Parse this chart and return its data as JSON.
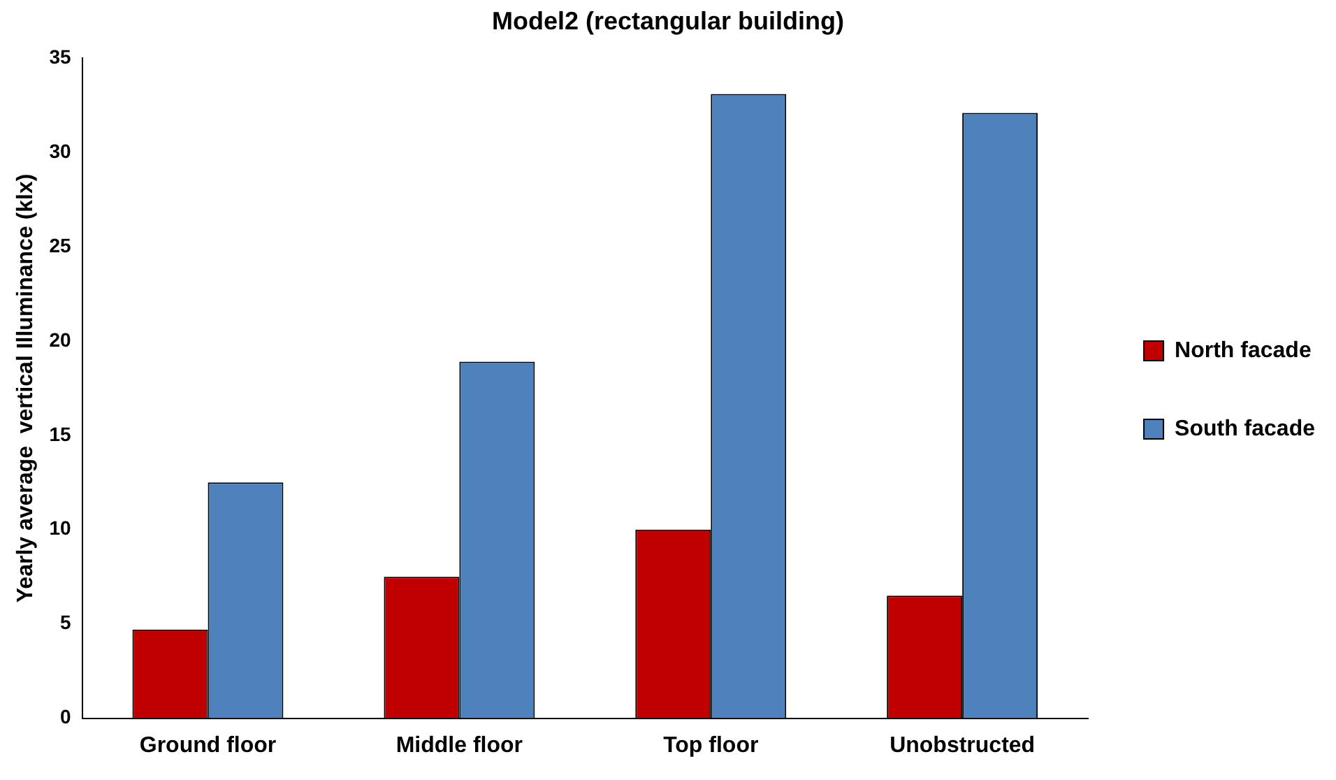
{
  "chart_data": {
    "type": "bar",
    "title": "Model2 (rectangular building)",
    "ylabel": "Yearly average  vertical Illuminance (klx)",
    "categories": [
      "Ground floor",
      "Middle floor",
      "Top floor",
      "Unobstructed"
    ],
    "series": [
      {
        "name": "North facade",
        "color": "#c00000",
        "values": [
          4.7,
          7.5,
          10,
          6.5
        ]
      },
      {
        "name": "South facade",
        "color": "#4f81bd",
        "values": [
          12.5,
          18.9,
          33.1,
          32.1
        ]
      }
    ],
    "ylim": [
      0,
      35
    ],
    "yticks": [
      0,
      5,
      10,
      15,
      20,
      25,
      30,
      35
    ],
    "grid": false,
    "legend": "right"
  }
}
